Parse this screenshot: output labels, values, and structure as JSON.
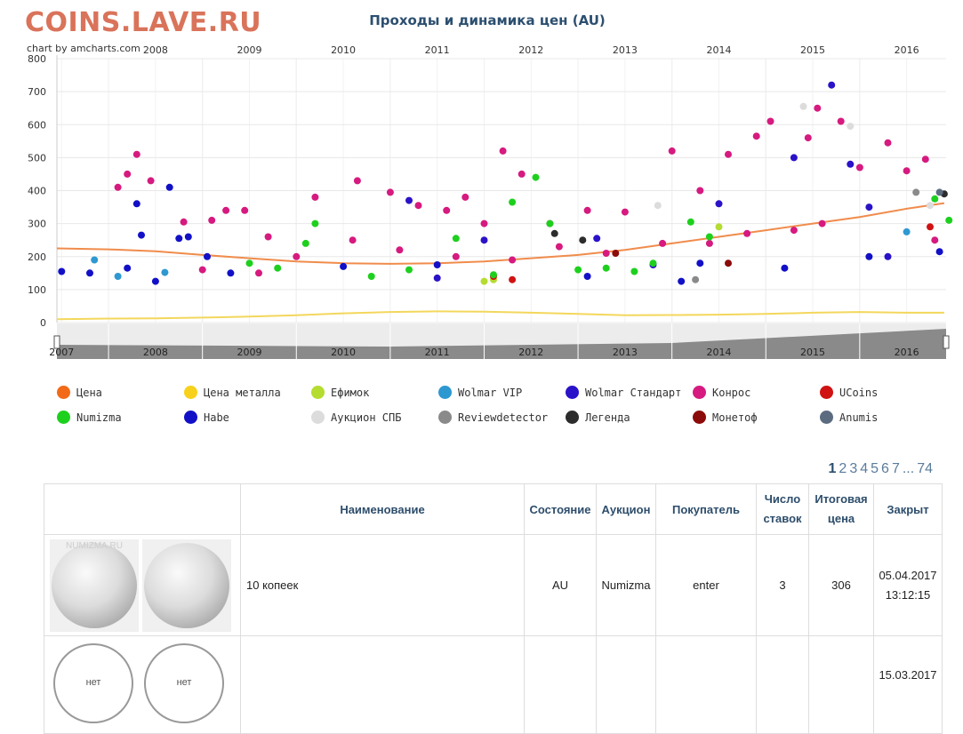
{
  "logo": "COINS.LAVE.RU",
  "chart_data": {
    "type": "scatter",
    "title": "Проходы и динамика цен (AU)",
    "credit": "chart by amcharts.com",
    "x_range": [
      "2007-05",
      "2016-12"
    ],
    "ylim": [
      0,
      800
    ],
    "yticks": [
      0,
      100,
      200,
      300,
      400,
      500,
      600,
      700,
      800
    ],
    "top_axis_labels": [
      "2008",
      "2009",
      "2010",
      "2011",
      "2012",
      "2013",
      "2014",
      "2015",
      "2016"
    ],
    "scrollbar_labels": [
      "2007",
      "2008",
      "2009",
      "2010",
      "2011",
      "2012",
      "2013",
      "2014",
      "2015",
      "2016"
    ],
    "grid": true,
    "legend_position": "bottom",
    "line_series": [
      {
        "name": "Цена",
        "color": "#f08c4c",
        "points": [
          [
            2007.45,
            225
          ],
          [
            2008.0,
            222
          ],
          [
            2008.5,
            216
          ],
          [
            2009.0,
            205
          ],
          [
            2009.5,
            195
          ],
          [
            2010.0,
            185
          ],
          [
            2010.5,
            180
          ],
          [
            2011.0,
            178
          ],
          [
            2011.5,
            180
          ],
          [
            2012.0,
            185
          ],
          [
            2012.5,
            195
          ],
          [
            2013.0,
            205
          ],
          [
            2013.5,
            220
          ],
          [
            2014.0,
            240
          ],
          [
            2014.5,
            260
          ],
          [
            2015.0,
            280
          ],
          [
            2015.5,
            300
          ],
          [
            2016.0,
            320
          ],
          [
            2016.5,
            345
          ],
          [
            2016.9,
            362
          ]
        ]
      },
      {
        "name": "Цена металла",
        "color": "#f3d75c",
        "points": [
          [
            2007.45,
            10
          ],
          [
            2008.0,
            12
          ],
          [
            2008.5,
            13
          ],
          [
            2009.0,
            15
          ],
          [
            2009.5,
            18
          ],
          [
            2010.0,
            22
          ],
          [
            2010.5,
            28
          ],
          [
            2011.0,
            32
          ],
          [
            2011.5,
            34
          ],
          [
            2012.0,
            33
          ],
          [
            2012.5,
            30
          ],
          [
            2013.0,
            26
          ],
          [
            2013.5,
            22
          ],
          [
            2014.0,
            23
          ],
          [
            2014.5,
            24
          ],
          [
            2015.0,
            26
          ],
          [
            2015.5,
            30
          ],
          [
            2016.0,
            32
          ],
          [
            2016.5,
            30
          ],
          [
            2016.9,
            30
          ]
        ]
      }
    ],
    "series": [
      {
        "name": "Ефимок",
        "color": "#b5dc30",
        "values": [
          [
            2012.0,
            125
          ],
          [
            2012.1,
            130
          ],
          [
            2014.5,
            290
          ]
        ]
      },
      {
        "name": "Wolmar VIP",
        "color": "#2e98d1",
        "values": [
          [
            2007.85,
            190
          ],
          [
            2008.1,
            140
          ],
          [
            2008.6,
            152
          ],
          [
            2016.5,
            275
          ]
        ]
      },
      {
        "name": "Wolmar Стандарт",
        "color": "#2a12c9",
        "values": [
          [
            2011.2,
            370
          ],
          [
            2012.0,
            250
          ],
          [
            2013.2,
            255
          ],
          [
            2014.5,
            360
          ],
          [
            2015.3,
            500
          ],
          [
            2015.7,
            720
          ],
          [
            2015.9,
            480
          ],
          [
            2016.1,
            350
          ],
          [
            2016.3,
            200
          ],
          [
            2013.8,
            175
          ],
          [
            2011.5,
            135
          ]
        ]
      },
      {
        "name": "Конрос",
        "color": "#d61a7f",
        "values": [
          [
            2008.1,
            410
          ],
          [
            2008.2,
            450
          ],
          [
            2008.3,
            510
          ],
          [
            2008.45,
            430
          ],
          [
            2008.8,
            305
          ],
          [
            2009.1,
            310
          ],
          [
            2009.25,
            340
          ],
          [
            2009.45,
            340
          ],
          [
            2009.7,
            260
          ],
          [
            2010.2,
            380
          ],
          [
            2010.65,
            430
          ],
          [
            2011.0,
            395
          ],
          [
            2011.3,
            355
          ],
          [
            2011.6,
            340
          ],
          [
            2011.8,
            380
          ],
          [
            2012.0,
            300
          ],
          [
            2012.2,
            520
          ],
          [
            2012.4,
            450
          ],
          [
            2012.7,
            300
          ],
          [
            2013.1,
            340
          ],
          [
            2013.5,
            335
          ],
          [
            2014.0,
            520
          ],
          [
            2014.3,
            400
          ],
          [
            2014.6,
            510
          ],
          [
            2014.9,
            565
          ],
          [
            2015.05,
            610
          ],
          [
            2015.45,
            560
          ],
          [
            2015.55,
            650
          ],
          [
            2015.8,
            610
          ],
          [
            2016.0,
            470
          ],
          [
            2016.3,
            545
          ],
          [
            2016.5,
            460
          ],
          [
            2016.7,
            495
          ],
          [
            2016.8,
            250
          ],
          [
            2009.0,
            160
          ],
          [
            2009.6,
            150
          ],
          [
            2010.0,
            200
          ],
          [
            2010.6,
            250
          ],
          [
            2011.1,
            220
          ],
          [
            2011.7,
            200
          ],
          [
            2012.3,
            190
          ],
          [
            2012.8,
            230
          ],
          [
            2013.3,
            210
          ],
          [
            2013.9,
            240
          ],
          [
            2014.4,
            240
          ],
          [
            2014.8,
            270
          ],
          [
            2015.3,
            280
          ],
          [
            2015.6,
            300
          ]
        ]
      },
      {
        "name": "UCoins",
        "color": "#d01212",
        "values": [
          [
            2012.1,
            140
          ],
          [
            2012.3,
            130
          ],
          [
            2016.75,
            290
          ]
        ]
      },
      {
        "name": "Numizma",
        "color": "#1ed01e",
        "values": [
          [
            2009.5,
            180
          ],
          [
            2009.8,
            165
          ],
          [
            2010.1,
            240
          ],
          [
            2010.2,
            300
          ],
          [
            2010.8,
            140
          ],
          [
            2011.2,
            160
          ],
          [
            2011.7,
            255
          ],
          [
            2012.1,
            145
          ],
          [
            2012.3,
            365
          ],
          [
            2012.55,
            440
          ],
          [
            2012.7,
            300
          ],
          [
            2013.0,
            160
          ],
          [
            2013.3,
            165
          ],
          [
            2013.6,
            155
          ],
          [
            2013.8,
            180
          ],
          [
            2014.2,
            305
          ],
          [
            2014.4,
            260
          ],
          [
            2016.8,
            375
          ],
          [
            2016.95,
            310
          ]
        ]
      },
      {
        "name": "Наbe",
        "color": "#1210c7",
        "values": [
          [
            2007.5,
            155
          ],
          [
            2007.8,
            150
          ],
          [
            2008.2,
            165
          ],
          [
            2008.3,
            360
          ],
          [
            2008.35,
            265
          ],
          [
            2008.5,
            125
          ],
          [
            2008.65,
            410
          ],
          [
            2008.75,
            255
          ],
          [
            2008.85,
            260
          ],
          [
            2009.05,
            200
          ],
          [
            2009.3,
            150
          ],
          [
            2010.5,
            170
          ],
          [
            2011.5,
            175
          ],
          [
            2013.1,
            140
          ],
          [
            2014.1,
            125
          ],
          [
            2014.3,
            180
          ],
          [
            2015.2,
            165
          ],
          [
            2016.1,
            200
          ],
          [
            2016.85,
            215
          ]
        ]
      },
      {
        "name": "Аукцион СПБ",
        "color": "#dcdcdc",
        "values": [
          [
            2015.4,
            655
          ],
          [
            2015.9,
            595
          ],
          [
            2016.75,
            355
          ],
          [
            2013.85,
            355
          ]
        ]
      },
      {
        "name": "Reviewdetector",
        "color": "#8a8a8a",
        "values": [
          [
            2014.25,
            130
          ],
          [
            2016.6,
            395
          ]
        ]
      },
      {
        "name": "Легенда",
        "color": "#2c2c2c",
        "values": [
          [
            2012.75,
            270
          ],
          [
            2013.05,
            250
          ],
          [
            2016.9,
            390
          ]
        ]
      },
      {
        "name": "Монетоф",
        "color": "#8b0a0a",
        "values": [
          [
            2014.6,
            180
          ],
          [
            2013.4,
            210
          ]
        ]
      },
      {
        "name": "Anumis",
        "color": "#5c6c80",
        "values": [
          [
            2016.85,
            395
          ]
        ]
      }
    ]
  },
  "legend": [
    {
      "label": "Цена",
      "color": "#f26a18"
    },
    {
      "label": "Цена металла",
      "color": "#f7d11b"
    },
    {
      "label": "Ефимок",
      "color": "#b5dc30"
    },
    {
      "label": "Wolmar VIP",
      "color": "#2e98d1"
    },
    {
      "label": "Wolmar Стандарт",
      "color": "#2a12c9"
    },
    {
      "label": "Конрос",
      "color": "#d61a7f"
    },
    {
      "label": "UCoins",
      "color": "#d01212"
    },
    {
      "label": "Numizma",
      "color": "#1ed01e"
    },
    {
      "label": "Наbe",
      "color": "#1210c7"
    },
    {
      "label": "Аукцион СПБ",
      "color": "#dcdcdc"
    },
    {
      "label": "Reviewdetector",
      "color": "#8a8a8a"
    },
    {
      "label": "Легенда",
      "color": "#2c2c2c"
    },
    {
      "label": "Монетоф",
      "color": "#8b0a0a"
    },
    {
      "label": "Anumis",
      "color": "#5c6c80"
    }
  ],
  "pager": {
    "current": "1",
    "pages": [
      "2",
      "3",
      "4",
      "5",
      "6",
      "7"
    ],
    "ellipsis": "...",
    "last": "74"
  },
  "table": {
    "headers": [
      "Наименование",
      "Состояние",
      "Аукцион",
      "Покупатель",
      "Число ставок",
      "Итоговая цена",
      "Закрыт"
    ],
    "rows": [
      {
        "name": "10 копеек",
        "state": "AU",
        "auction": "Numizma",
        "buyer": "enter",
        "bids": "3",
        "price": "306",
        "closed_date": "05.04.2017",
        "closed_time": "13:12:15",
        "img_label": "NUMIZMA.RU"
      },
      {
        "name": "",
        "state": "",
        "auction": "",
        "buyer": "",
        "bids": "",
        "price": "",
        "closed_date": "15.03.2017",
        "closed_time": "",
        "img_label": "нет"
      }
    ]
  }
}
